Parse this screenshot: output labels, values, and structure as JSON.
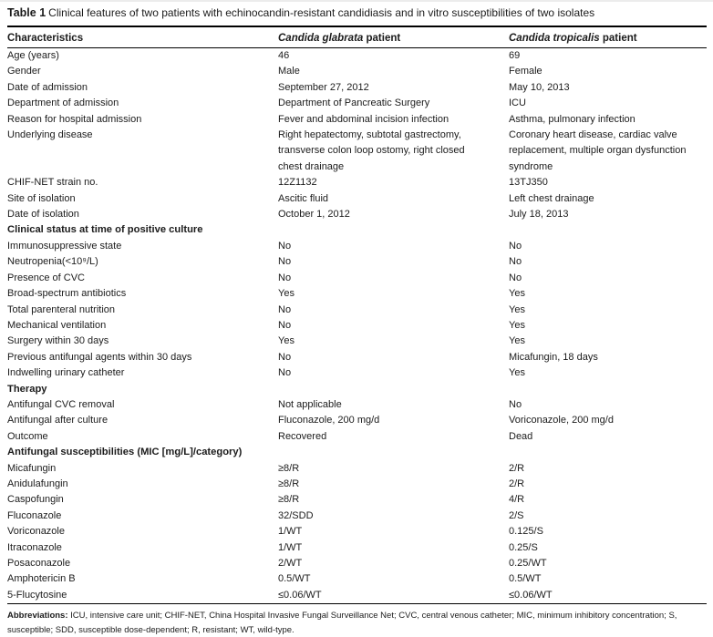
{
  "title": {
    "label": "Table 1",
    "text": "Clinical features of two patients with echinocandin-resistant candidiasis and in vitro susceptibilities of two isolates"
  },
  "table": {
    "columns": [
      {
        "italic": "",
        "label": "Characteristics"
      },
      {
        "italic": "Candida glabrata",
        "label": " patient"
      },
      {
        "italic": "Candida tropicalis",
        "label": " patient"
      }
    ],
    "rows": [
      {
        "type": "data",
        "label": "Age (years)",
        "glabrata": "46",
        "tropicalis": "69"
      },
      {
        "type": "data",
        "label": "Gender",
        "glabrata": "Male",
        "tropicalis": "Female"
      },
      {
        "type": "data",
        "label": "Date of admission",
        "glabrata": "September 27, 2012",
        "tropicalis": "May 10, 2013"
      },
      {
        "type": "data",
        "label": "Department of admission",
        "glabrata": "Department of Pancreatic Surgery",
        "tropicalis": "ICU"
      },
      {
        "type": "data",
        "label": "Reason for hospital admission",
        "glabrata": "Fever and abdominal incision infection",
        "tropicalis": "Asthma, pulmonary infection"
      },
      {
        "type": "data",
        "label": "Underlying disease",
        "glabrata": "Right hepatectomy, subtotal gastrectomy,\ntransverse colon loop ostomy, right closed\nchest drainage",
        "tropicalis": "Coronary heart disease, cardiac valve\nreplacement, multiple organ dysfunction\nsyndrome"
      },
      {
        "type": "data",
        "label": "CHIF-NET strain no.",
        "glabrata": "12Z1132",
        "tropicalis": "13TJ350"
      },
      {
        "type": "data",
        "label": "Site of isolation",
        "glabrata": "Ascitic fluid",
        "tropicalis": "Left chest drainage"
      },
      {
        "type": "data",
        "label": "Date of isolation",
        "glabrata": "October 1, 2012",
        "tropicalis": "July 18, 2013"
      },
      {
        "type": "section",
        "label": "Clinical status at time of positive culture"
      },
      {
        "type": "data",
        "label": "Immunosuppressive state",
        "glabrata": "No",
        "tropicalis": "No"
      },
      {
        "type": "data",
        "label": "Neutropenia(<10⁹/L)",
        "glabrata": "No",
        "tropicalis": "No"
      },
      {
        "type": "data",
        "label": "Presence of CVC",
        "glabrata": "No",
        "tropicalis": "No"
      },
      {
        "type": "data",
        "label": "Broad-spectrum antibiotics",
        "glabrata": "Yes",
        "tropicalis": "Yes"
      },
      {
        "type": "data",
        "label": "Total parenteral nutrition",
        "glabrata": "No",
        "tropicalis": "Yes"
      },
      {
        "type": "data",
        "label": "Mechanical ventilation",
        "glabrata": "No",
        "tropicalis": "Yes"
      },
      {
        "type": "data",
        "label": "Surgery within 30 days",
        "glabrata": "Yes",
        "tropicalis": "Yes"
      },
      {
        "type": "data",
        "label": "Previous antifungal agents within 30 days",
        "glabrata": "No",
        "tropicalis": "Micafungin, 18 days"
      },
      {
        "type": "data",
        "label": "Indwelling urinary catheter",
        "glabrata": "No",
        "tropicalis": "Yes"
      },
      {
        "type": "section",
        "label": "Therapy"
      },
      {
        "type": "data",
        "label": "Antifungal CVC removal",
        "glabrata": "Not applicable",
        "tropicalis": "No"
      },
      {
        "type": "data",
        "label": "Antifungal after culture",
        "glabrata": "Fluconazole, 200 mg/d",
        "tropicalis": "Voriconazole, 200 mg/d"
      },
      {
        "type": "data",
        "label": "Outcome",
        "glabrata": "Recovered",
        "tropicalis": "Dead"
      },
      {
        "type": "section",
        "label": "Antifungal susceptibilities (MIC [mg/L]/category)"
      },
      {
        "type": "data",
        "label": "Micafungin",
        "glabrata": "≥8/R",
        "tropicalis": "2/R"
      },
      {
        "type": "data",
        "label": "Anidulafungin",
        "glabrata": "≥8/R",
        "tropicalis": "2/R"
      },
      {
        "type": "data",
        "label": "Caspofungin",
        "glabrata": "≥8/R",
        "tropicalis": "4/R"
      },
      {
        "type": "data",
        "label": "Fluconazole",
        "glabrata": "32/SDD",
        "tropicalis": "2/S"
      },
      {
        "type": "data",
        "label": "Voriconazole",
        "glabrata": "1/WT",
        "tropicalis": "0.125/S"
      },
      {
        "type": "data",
        "label": "Itraconazole",
        "glabrata": "1/WT",
        "tropicalis": "0.25/S"
      },
      {
        "type": "data",
        "label": "Posaconazole",
        "glabrata": "2/WT",
        "tropicalis": "0.25/WT"
      },
      {
        "type": "data",
        "label": "Amphotericin B",
        "glabrata": "0.5/WT",
        "tropicalis": "0.5/WT"
      },
      {
        "type": "data",
        "label": "5-Flucytosine",
        "glabrata": "≤0.06/WT",
        "tropicalis": "≤0.06/WT"
      }
    ]
  },
  "footer": {
    "label": "Abbreviations:",
    "text": " ICU, intensive care unit; CHIF-NET, China Hospital Invasive Fungal Surveillance Net; CVC, central venous catheter; MIC, minimum inhibitory concentration; S, susceptible; SDD, susceptible dose-dependent; R, resistant; WT, wild-type."
  }
}
